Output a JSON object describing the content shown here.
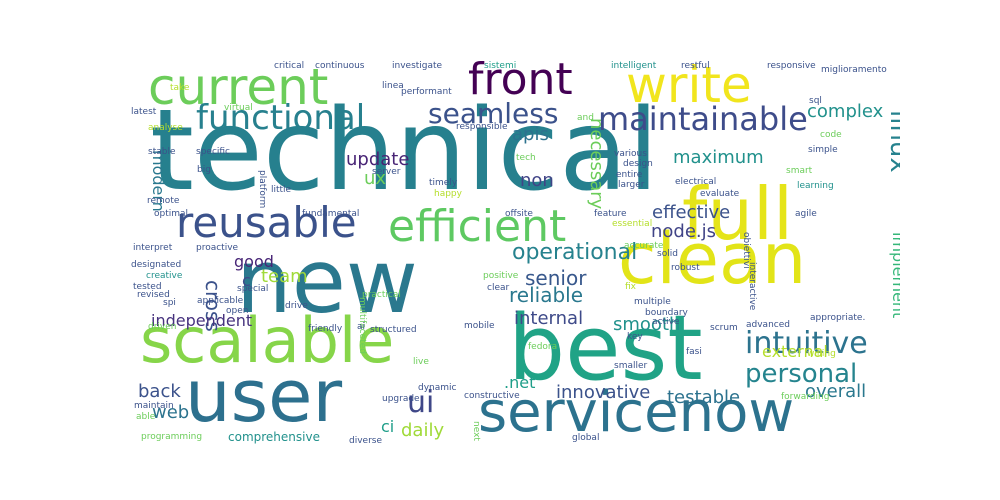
{
  "words": [
    {
      "id": "technical",
      "text": "technical",
      "color": "#26808e",
      "rot": false
    },
    {
      "id": "new",
      "text": "new",
      "color": "#2a788e",
      "rot": false
    },
    {
      "id": "best",
      "text": "best",
      "color": "#20a386",
      "rot": false
    },
    {
      "id": "scalable",
      "text": "scalable",
      "color": "#86d549",
      "rot": false
    },
    {
      "id": "user",
      "text": "user",
      "color": "#2d708e",
      "rot": false
    },
    {
      "id": "servicenow",
      "text": "servicenow",
      "color": "#2c728e",
      "rot": false
    },
    {
      "id": "clean",
      "text": "clean",
      "color": "#e2e418",
      "rot": false
    },
    {
      "id": "full",
      "text": "full",
      "color": "#e5e419",
      "rot": false
    },
    {
      "id": "current",
      "text": "current",
      "color": "#6ccd5a",
      "rot": false
    },
    {
      "id": "write",
      "text": "write",
      "color": "#f1e51d",
      "rot": false
    },
    {
      "id": "front",
      "text": "front",
      "color": "#440154",
      "rot": false
    },
    {
      "id": "reusable",
      "text": "reusable",
      "color": "#3b528b",
      "rot": false
    },
    {
      "id": "efficient",
      "text": "efficient",
      "color": "#5ec962",
      "rot": false
    },
    {
      "id": "functional",
      "text": "functional",
      "color": "#27808e",
      "rot": false
    },
    {
      "id": "maintainable",
      "text": "maintainable",
      "color": "#3e4c8a",
      "rot": false
    },
    {
      "id": "seamless",
      "text": "seamless",
      "color": "#3b528b",
      "rot": false
    },
    {
      "id": "complex",
      "text": "complex",
      "color": "#21918c",
      "rot": false
    },
    {
      "id": "linux",
      "text": "linux",
      "color": "#26828e",
      "rot": true
    },
    {
      "id": "intuitive",
      "text": "intuitive",
      "color": "#2c738e",
      "rot": false
    },
    {
      "id": "personal",
      "text": "personal",
      "color": "#25848e",
      "rot": false
    },
    {
      "id": "ui",
      "text": "ui",
      "color": "#3f4788",
      "rot": false
    },
    {
      "id": "operational",
      "text": "operational",
      "color": "#26828e",
      "rot": false
    },
    {
      "id": "senior",
      "text": "senior",
      "color": "#38588c",
      "rot": false
    },
    {
      "id": "reliable",
      "text": "reliable",
      "color": "#2a788e",
      "rot": false
    },
    {
      "id": "maximum",
      "text": "maximum",
      "color": "#21918c",
      "rot": false
    },
    {
      "id": "update",
      "text": "update",
      "color": "#482475",
      "rot": false
    },
    {
      "id": "necessary",
      "text": "necessary",
      "color": "#6ccd5a",
      "rot": true
    },
    {
      "id": "non",
      "text": "non",
      "color": "#414487",
      "rot": false
    },
    {
      "id": "effective",
      "text": "effective",
      "color": "#3b528b",
      "rot": false
    },
    {
      "id": "nodejs",
      "text": "node.js",
      "color": "#414487",
      "rot": false
    },
    {
      "id": "implement",
      "text": "implement",
      "color": "#35b779",
      "rot": true
    },
    {
      "id": "apis",
      "text": "apis",
      "color": "#2c728e",
      "rot": false
    },
    {
      "id": "modern",
      "text": "modern",
      "color": "#2a788e",
      "rot": true
    },
    {
      "id": "cross",
      "text": "cross",
      "color": "#3b528b",
      "rot": true
    },
    {
      "id": "ux",
      "text": "ux",
      "color": "#6ccd5a",
      "rot": false
    },
    {
      "id": "c",
      "text": "c",
      "color": "#3e4a89",
      "rot": false
    },
    {
      "id": "good",
      "text": "good",
      "color": "#482677",
      "rot": false
    },
    {
      "id": "team",
      "text": "team",
      "color": "#a0da39",
      "rot": false
    },
    {
      "id": "independent",
      "text": "independent",
      "color": "#46327e",
      "rot": false
    },
    {
      "id": "internal",
      "text": "internal",
      "color": "#3e4a89",
      "rot": false
    },
    {
      "id": "smooth",
      "text": "smooth",
      "color": "#21918c",
      "rot": false
    },
    {
      "id": "external",
      "text": "external",
      "color": "#b5de2b",
      "rot": false
    },
    {
      "id": "overall",
      "text": "overall",
      "color": "#2a788e",
      "rot": false
    },
    {
      "id": "testable",
      "text": "testable",
      "color": "#2c728e",
      "rot": false
    },
    {
      "id": "innovative",
      "text": "innovative",
      "color": "#3b528b",
      "rot": false
    },
    {
      "id": "back",
      "text": "back",
      "color": "#3b528b",
      "rot": false
    },
    {
      "id": "web",
      "text": "web",
      "color": "#2c738e",
      "rot": false
    },
    {
      "id": "net",
      "text": ".net",
      "color": "#1f9e89",
      "rot": false
    },
    {
      "id": "ci",
      "text": "ci",
      "color": "#1f9e89",
      "rot": false
    },
    {
      "id": "daily",
      "text": "daily",
      "color": "#a0da39",
      "rot": false
    },
    {
      "id": "comprehensive",
      "text": "comprehensive",
      "color": "#21918c",
      "rot": false
    },
    {
      "id": "critical",
      "text": "critical",
      "color": "#3b528b",
      "rot": false
    },
    {
      "id": "continuous",
      "text": "continuous",
      "color": "#3b528b",
      "rot": false
    },
    {
      "id": "investigate",
      "text": "investigate",
      "color": "#3b528b",
      "rot": false
    },
    {
      "id": "sistemi",
      "text": "sistemi",
      "color": "#1f9e89",
      "rot": false
    },
    {
      "id": "intelligent",
      "text": "intelligent",
      "color": "#21918c",
      "rot": false
    },
    {
      "id": "restful",
      "text": "restful",
      "color": "#3b528b",
      "rot": false
    },
    {
      "id": "responsive",
      "text": "responsive",
      "color": "#3b528b",
      "rot": false
    },
    {
      "id": "miglioramento",
      "text": "miglioramento",
      "color": "#3b528b",
      "rot": false
    },
    {
      "id": "take",
      "text": "take",
      "color": "#b5de2b",
      "rot": false
    },
    {
      "id": "linea",
      "text": "linea",
      "color": "#3b528b",
      "rot": false
    },
    {
      "id": "performant",
      "text": "performant",
      "color": "#3b528b",
      "rot": false
    },
    {
      "id": "sql",
      "text": "sql",
      "color": "#3b528b",
      "rot": false
    },
    {
      "id": "asic",
      "text": "asic",
      "color": "#21918c",
      "rot": false
    },
    {
      "id": "latest",
      "text": "latest",
      "color": "#3b528b",
      "rot": false
    },
    {
      "id": "virtual",
      "text": "virtual",
      "color": "#6ccd5a",
      "rot": false
    },
    {
      "id": "and",
      "text": "and",
      "color": "#6ccd5a",
      "rot": false
    },
    {
      "id": "responsible",
      "text": "responsible",
      "color": "#3b528b",
      "rot": false
    },
    {
      "id": "analyse",
      "text": "analyse",
      "color": "#b5de2b",
      "rot": false
    },
    {
      "id": "code",
      "text": "code",
      "color": "#6ccd5a",
      "rot": false
    },
    {
      "id": "stable",
      "text": "stable",
      "color": "#3b528b",
      "rot": false
    },
    {
      "id": "specific",
      "text": "specific",
      "color": "#3b528b",
      "rot": false
    },
    {
      "id": "various",
      "text": "various",
      "color": "#3b528b",
      "rot": false
    },
    {
      "id": "simple",
      "text": "simple",
      "color": "#3b528b",
      "rot": false
    },
    {
      "id": "tech",
      "text": "tech",
      "color": "#6ccd5a",
      "rot": false
    },
    {
      "id": "design",
      "text": "design",
      "color": "#3b528b",
      "rot": false
    },
    {
      "id": "big",
      "text": "big",
      "color": "#3b528b",
      "rot": false
    },
    {
      "id": "server",
      "text": "server",
      "color": "#3b528b",
      "rot": false
    },
    {
      "id": "timely",
      "text": "timely",
      "color": "#3b528b",
      "rot": false
    },
    {
      "id": "entire",
      "text": "entire",
      "color": "#3b528b",
      "rot": false
    },
    {
      "id": "smart",
      "text": "smart",
      "color": "#6ccd5a",
      "rot": false
    },
    {
      "id": "platform",
      "text": "platform",
      "color": "#3b528b",
      "rot": true
    },
    {
      "id": "little",
      "text": "little",
      "color": "#3b528b",
      "rot": false
    },
    {
      "id": "larger",
      "text": "larger",
      "color": "#3b528b",
      "rot": false
    },
    {
      "id": "electrical",
      "text": "electrical",
      "color": "#3b528b",
      "rot": false
    },
    {
      "id": "learning",
      "text": "learning",
      "color": "#21918c",
      "rot": false
    },
    {
      "id": "happy",
      "text": "happy",
      "color": "#b5de2b",
      "rot": false
    },
    {
      "id": "evaluate",
      "text": "evaluate",
      "color": "#3b528b",
      "rot": false
    },
    {
      "id": "remote",
      "text": "remote",
      "color": "#3b528b",
      "rot": false
    },
    {
      "id": "optimal",
      "text": "optimal",
      "color": "#3b528b",
      "rot": false
    },
    {
      "id": "fundamental",
      "text": "fundamental",
      "color": "#3b528b",
      "rot": false
    },
    {
      "id": "offsite",
      "text": "offsite",
      "color": "#3b528b",
      "rot": false
    },
    {
      "id": "feature",
      "text": "feature",
      "color": "#3b528b",
      "rot": false
    },
    {
      "id": "essential",
      "text": "essential",
      "color": "#b5de2b",
      "rot": false
    },
    {
      "id": "agile",
      "text": "agile",
      "color": "#3b528b",
      "rot": false
    },
    {
      "id": "interpret",
      "text": "interpret",
      "color": "#3b528b",
      "rot": false
    },
    {
      "id": "proactive",
      "text": "proactive",
      "color": "#3b528b",
      "rot": false
    },
    {
      "id": "accurate",
      "text": "accurate",
      "color": "#6ccd5a",
      "rot": false
    },
    {
      "id": "solid",
      "text": "solid",
      "color": "#3b528b",
      "rot": false
    },
    {
      "id": "robust",
      "text": "robust",
      "color": "#3b528b",
      "rot": false
    },
    {
      "id": "obiettivi",
      "text": "obiettivi",
      "color": "#3b528b",
      "rot": true
    },
    {
      "id": "designated",
      "text": "designated",
      "color": "#3b528b",
      "rot": false
    },
    {
      "id": "creative",
      "text": "creative",
      "color": "#21918c",
      "rot": false
    },
    {
      "id": "positive",
      "text": "positive",
      "color": "#6ccd5a",
      "rot": false
    },
    {
      "id": "interactive",
      "text": "interactive",
      "color": "#3b528b",
      "rot": true
    },
    {
      "id": "tested",
      "text": "tested",
      "color": "#3b528b",
      "rot": false
    },
    {
      "id": "special",
      "text": "special",
      "color": "#3b528b",
      "rot": false
    },
    {
      "id": "clear",
      "text": "clear",
      "color": "#3b528b",
      "rot": false
    },
    {
      "id": "fix",
      "text": "fix",
      "color": "#b5de2b",
      "rot": false
    },
    {
      "id": "revised",
      "text": "revised",
      "color": "#3b528b",
      "rot": false
    },
    {
      "id": "spi",
      "text": "spi",
      "color": "#3b528b",
      "rot": false
    },
    {
      "id": "multifaceted",
      "text": "multifaceted",
      "color": "#6ccd5a",
      "rot": true
    },
    {
      "id": "practical",
      "text": "practical",
      "color": "#6ccd5a",
      "rot": false
    },
    {
      "id": "multiple",
      "text": "multiple",
      "color": "#3b528b",
      "rot": false
    },
    {
      "id": "applicable",
      "text": "applicable",
      "color": "#3b528b",
      "rot": false
    },
    {
      "id": "open",
      "text": "open",
      "color": "#3b528b",
      "rot": false
    },
    {
      "id": "drive",
      "text": "drive",
      "color": "#3b528b",
      "rot": false
    },
    {
      "id": "boundary",
      "text": "boundary",
      "color": "#3b528b",
      "rot": false
    },
    {
      "id": "active",
      "text": "active",
      "color": "#3b528b",
      "rot": false
    },
    {
      "id": "driven",
      "text": "driven",
      "color": "#6ccd5a",
      "rot": false
    },
    {
      "id": "friendly",
      "text": "friendly",
      "color": "#3b528b",
      "rot": false
    },
    {
      "id": "ai",
      "text": "ai",
      "color": "#3b528b",
      "rot": false
    },
    {
      "id": "structured",
      "text": "structured",
      "color": "#3b528b",
      "rot": false
    },
    {
      "id": "mobile",
      "text": "mobile",
      "color": "#3b528b",
      "rot": false
    },
    {
      "id": "fedora",
      "text": "fedora",
      "color": "#6ccd5a",
      "rot": false
    },
    {
      "id": "scrum",
      "text": "scrum",
      "color": "#3b528b",
      "rot": false
    },
    {
      "id": "advanced",
      "text": "advanced",
      "color": "#3b528b",
      "rot": false
    },
    {
      "id": "appropriate",
      "text": "appropriate.",
      "color": "#3b528b",
      "rot": false
    },
    {
      "id": "willing",
      "text": "willing",
      "color": "#b5de2b",
      "rot": false
    },
    {
      "id": "key",
      "text": "key",
      "color": "#3b528b",
      "rot": false
    },
    {
      "id": "fasi",
      "text": "fasi",
      "color": "#3b528b",
      "rot": false
    },
    {
      "id": "live",
      "text": "live",
      "color": "#6ccd5a",
      "rot": false
    },
    {
      "id": "smaller",
      "text": "smaller",
      "color": "#3b528b",
      "rot": false
    },
    {
      "id": "dynamic",
      "text": "dynamic",
      "color": "#3b528b",
      "rot": false
    },
    {
      "id": "upgrade",
      "text": "upgrade",
      "color": "#3b528b",
      "rot": false
    },
    {
      "id": "forwarding",
      "text": "forwarding",
      "color": "#6ccd5a",
      "rot": false
    },
    {
      "id": "maintain",
      "text": "maintain",
      "color": "#3b528b",
      "rot": false
    },
    {
      "id": "constructive",
      "text": "constructive",
      "color": "#3b528b",
      "rot": false
    },
    {
      "id": "able",
      "text": "able",
      "color": "#6ccd5a",
      "rot": false
    },
    {
      "id": "next",
      "text": "next",
      "color": "#6ccd5a",
      "rot": true
    },
    {
      "id": "programming",
      "text": "programming",
      "color": "#6ccd5a",
      "rot": false
    },
    {
      "id": "diverse",
      "text": "diverse",
      "color": "#3b528b",
      "rot": false
    },
    {
      "id": "global",
      "text": "global",
      "color": "#3b528b",
      "rot": false
    }
  ]
}
